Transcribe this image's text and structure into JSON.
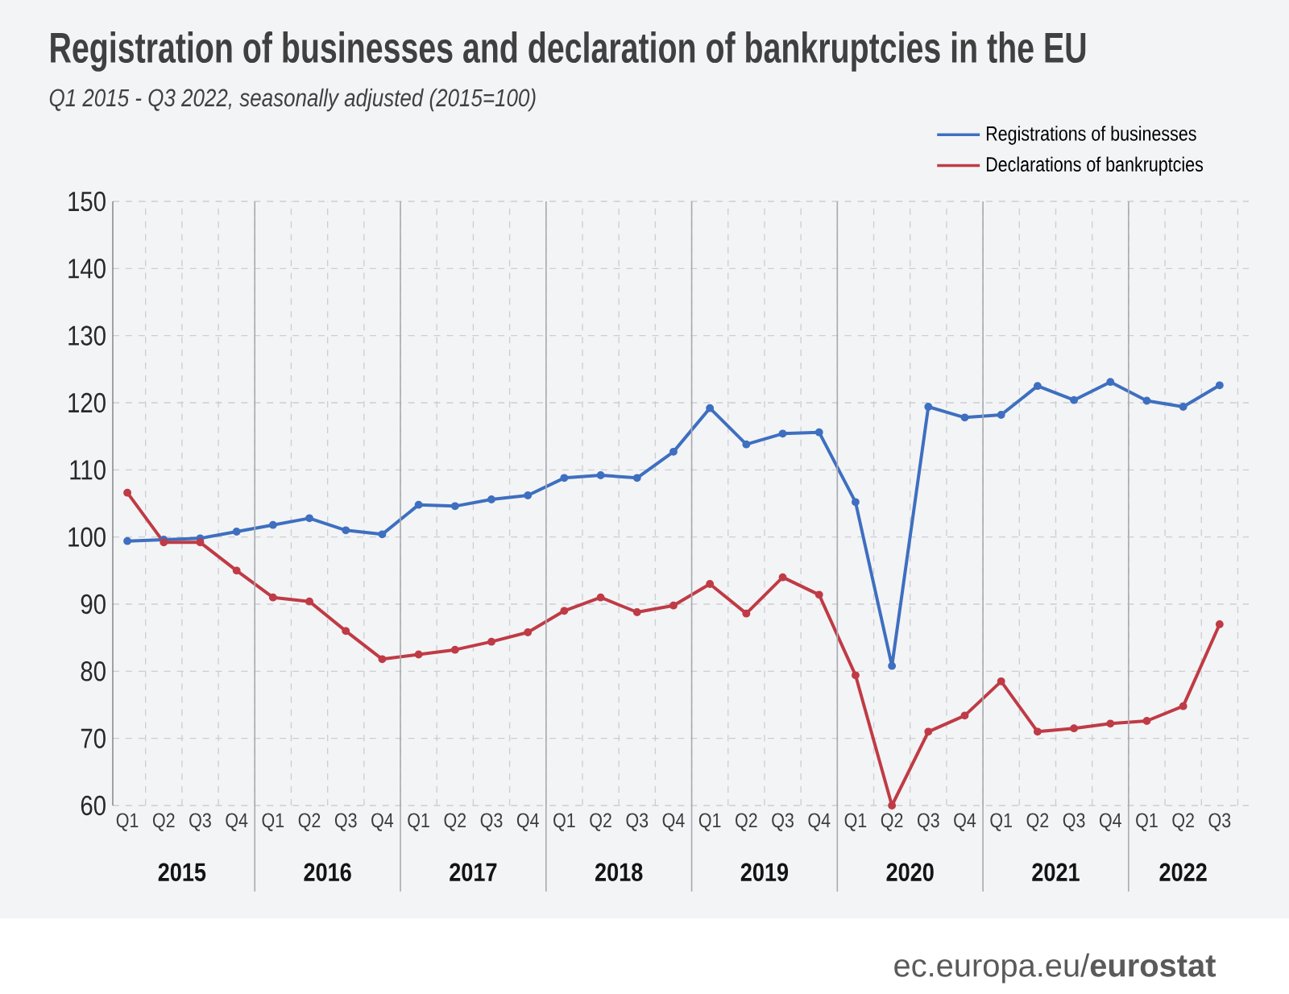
{
  "chart_data": {
    "type": "line",
    "title": "Registration of businesses and declaration of bankruptcies in the EU",
    "subtitle": "Q1 2015 - Q3 2022, seasonally adjusted  (2015=100)",
    "categories": [
      "Q1",
      "Q2",
      "Q3",
      "Q4",
      "Q1",
      "Q2",
      "Q3",
      "Q4",
      "Q1",
      "Q2",
      "Q3",
      "Q4",
      "Q1",
      "Q2",
      "Q3",
      "Q4",
      "Q1",
      "Q2",
      "Q3",
      "Q4",
      "Q1",
      "Q2",
      "Q3",
      "Q4",
      "Q1",
      "Q2",
      "Q3",
      "Q4",
      "Q1",
      "Q2",
      "Q3"
    ],
    "series": [
      {
        "name": "Registrations of businesses",
        "color": "#3e6fc0",
        "values": [
          99.4,
          99.6,
          99.8,
          100.8,
          101.8,
          102.8,
          101.0,
          100.4,
          104.8,
          104.6,
          105.6,
          106.2,
          108.8,
          109.2,
          108.8,
          112.7,
          119.2,
          113.8,
          115.4,
          115.6,
          105.2,
          80.8,
          119.4,
          117.8,
          118.2,
          122.5,
          120.4,
          123.1,
          120.3,
          119.4,
          122.6
        ]
      },
      {
        "name": "Declarations of bankruptcies",
        "color": "#bf3b45",
        "values": [
          106.6,
          99.2,
          99.2,
          95.0,
          91.0,
          90.4,
          86.0,
          81.8,
          82.5,
          83.2,
          84.4,
          85.8,
          89.0,
          91.0,
          88.8,
          89.8,
          93.0,
          88.6,
          94.0,
          91.4,
          79.4,
          60.0,
          71.0,
          73.4,
          78.5,
          71.0,
          71.5,
          72.2,
          72.6,
          74.8,
          87.0
        ]
      }
    ],
    "ylim": [
      60,
      150
    ],
    "yticks": [
      60,
      70,
      80,
      90,
      100,
      110,
      120,
      130,
      140,
      150
    ],
    "grid": true,
    "legend": "top right",
    "marker": "circle",
    "annotations": [
      "2015",
      "2016",
      "2017",
      "2018",
      "2019",
      "2020",
      "2021",
      "2022",
      "ec.europa.eu/**eurostat**"
    ]
  }
}
